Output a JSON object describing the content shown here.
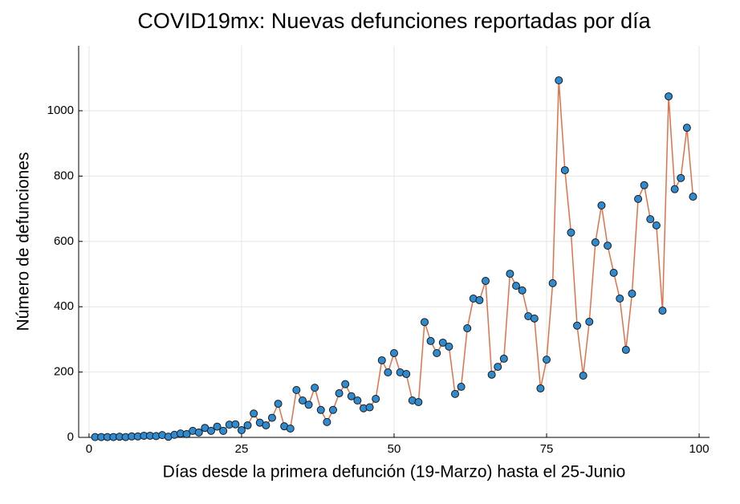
{
  "chart_data": {
    "type": "line",
    "title": "COVID19mx: Nuevas defunciones reportadas por día",
    "x_label": "Días desde la primera defunción (19-Marzo) hasta el 25-Junio",
    "y_label": "Número de defunciones",
    "x": [
      1,
      2,
      3,
      4,
      5,
      6,
      7,
      8,
      9,
      10,
      11,
      12,
      13,
      14,
      15,
      16,
      17,
      18,
      19,
      20,
      21,
      22,
      23,
      24,
      25,
      26,
      27,
      28,
      29,
      30,
      31,
      32,
      33,
      34,
      35,
      36,
      37,
      38,
      39,
      40,
      41,
      42,
      43,
      44,
      45,
      46,
      47,
      48,
      49,
      50,
      51,
      52,
      53,
      54,
      55,
      56,
      57,
      58,
      59,
      60,
      61,
      62,
      63,
      64,
      65,
      66,
      67,
      68,
      69,
      70,
      71,
      72,
      73,
      74,
      75,
      76,
      77,
      78,
      79,
      80,
      81,
      82,
      83,
      84,
      85,
      86,
      87,
      88,
      89,
      90,
      91,
      92,
      93,
      94,
      95,
      96,
      97,
      98,
      99
    ],
    "series": [
      {
        "name": "defunciones",
        "color": "#e0714a",
        "marker_color": "#2f8bd0",
        "values": [
          1,
          1,
          1,
          1,
          2,
          1,
          3,
          3,
          5,
          5,
          4,
          7,
          2,
          8,
          12,
          10,
          20,
          15,
          29,
          20,
          33,
          20,
          39,
          40,
          22,
          37,
          73,
          45,
          37,
          60,
          103,
          34,
          27,
          145,
          113,
          100,
          152,
          84,
          47,
          84,
          135,
          163,
          126,
          113,
          89,
          92,
          118,
          236,
          199,
          258,
          199,
          194,
          113,
          108,
          353,
          295,
          258,
          290,
          278,
          133,
          155,
          334,
          425,
          420,
          479,
          192,
          216,
          241,
          501,
          464,
          450,
          371,
          364,
          150,
          238,
          472,
          1093,
          818,
          627,
          342,
          189,
          354,
          597,
          710,
          587,
          504,
          425,
          268,
          440,
          730,
          772,
          668,
          649,
          388,
          1044,
          760,
          794,
          948,
          737
        ]
      }
    ],
    "xlim": [
      -1.7,
      101.7
    ],
    "ylim": [
      0,
      1199
    ],
    "xticks": [
      0,
      25,
      50,
      75,
      100
    ],
    "yticks": [
      0,
      200,
      400,
      600,
      800,
      1000
    ],
    "grid": true
  }
}
